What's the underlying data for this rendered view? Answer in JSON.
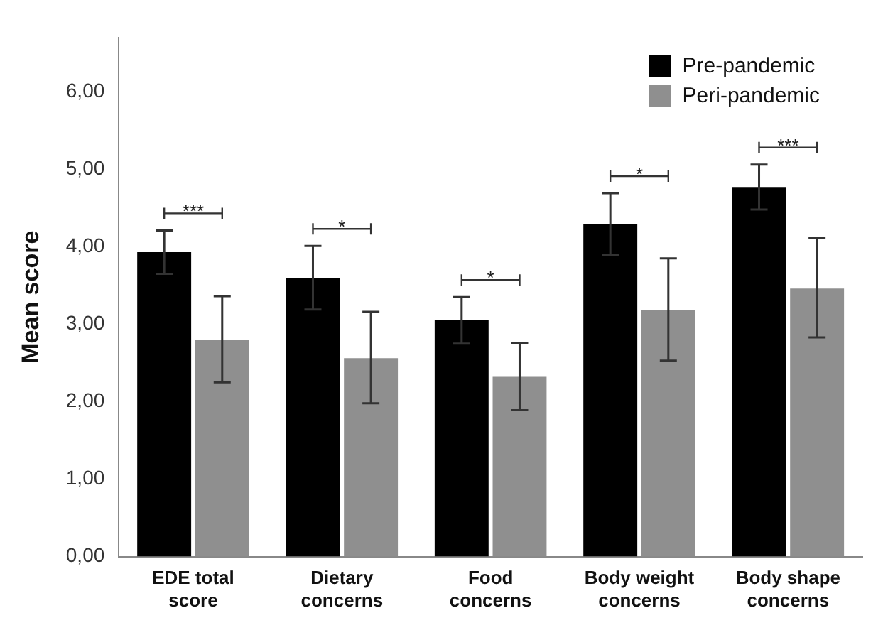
{
  "chart_data": {
    "type": "bar",
    "ylabel": "Mean score",
    "categories": [
      "EDE total score",
      "Dietary concerns",
      "Food concerns",
      "Body weight concerns",
      "Body shape concerns"
    ],
    "series": [
      {
        "name": "Pre-pandemic",
        "color": "#000000",
        "values": [
          3.93,
          3.6,
          3.05,
          4.29,
          4.77
        ],
        "errors": [
          [
            3.65,
            4.21
          ],
          [
            3.19,
            4.01
          ],
          [
            2.75,
            3.35
          ],
          [
            3.89,
            4.69
          ],
          [
            4.48,
            5.06
          ]
        ]
      },
      {
        "name": "Peri-pandemic",
        "color": "#8f8f8f",
        "values": [
          2.8,
          2.56,
          2.32,
          3.18,
          3.46
        ],
        "errors": [
          [
            2.25,
            3.36
          ],
          [
            1.98,
            3.16
          ],
          [
            1.89,
            2.76
          ],
          [
            2.53,
            3.85
          ],
          [
            2.83,
            4.11
          ]
        ]
      }
    ],
    "ylim": [
      0,
      6.7
    ],
    "yticks": [
      {
        "value": 0,
        "label": "0,00"
      },
      {
        "value": 1,
        "label": "1,00"
      },
      {
        "value": 2,
        "label": "2,00"
      },
      {
        "value": 3,
        "label": "3,00"
      },
      {
        "value": 4,
        "label": "4,00"
      },
      {
        "value": 5,
        "label": "5,00"
      },
      {
        "value": 6,
        "label": "6,00"
      }
    ],
    "annotations": [
      "***",
      "*",
      "*",
      "*",
      "***"
    ],
    "grid": false,
    "legend": "top right"
  }
}
